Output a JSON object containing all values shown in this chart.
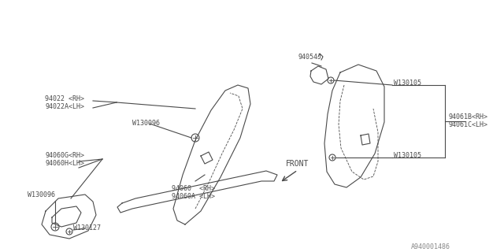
{
  "bg_color": "#ffffff",
  "line_color": "#4a4a4a",
  "text_color": "#4a4a4a",
  "diagram_id": "A940001486",
  "labels": {
    "top_left_1": "94022 <RH>",
    "top_left_2": "94022A<LH>",
    "top_left_w": "W130096",
    "mid_left_1": "94060G<RH>",
    "mid_left_2": "94060H<LH>",
    "mid_left_w": "W130096",
    "bot_left_w": "W130127",
    "top_right_label": "94054J",
    "top_right_w": "W130105",
    "right_1": "94061B<RH>",
    "right_2": "94061C<LH>",
    "bot_right_w": "W130105",
    "bottom_1": "94060  <RH>",
    "bottom_2": "94060A <LH>",
    "front": "FRONT"
  }
}
